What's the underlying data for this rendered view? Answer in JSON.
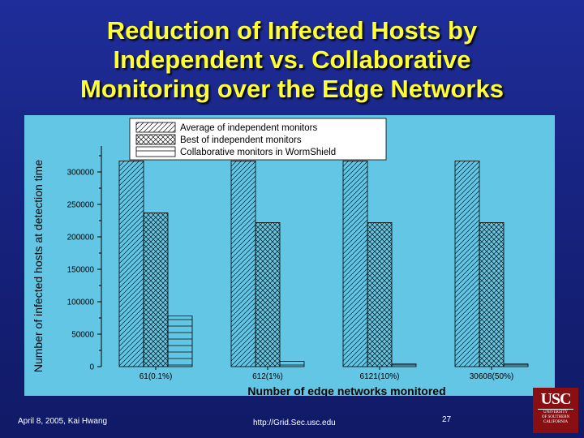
{
  "slide": {
    "title_lines": [
      "Reduction of Infected Hosts by",
      "Independent vs. Collaborative",
      "Monitoring over the Edge Networks"
    ]
  },
  "footer": {
    "date_author": "April 8, 2005,  Kai Hwang",
    "url": "http://Grid.Sec.usc.edu",
    "page": "27"
  },
  "logo": {
    "abbr": "USC",
    "line1": "UNIVERSITY",
    "line2": "OF SOUTHERN",
    "line3": "CALIFORNIA"
  },
  "colors": {
    "chart_background": "#63c6e4",
    "title": "#ffff33",
    "slide_background": "#1a2888"
  },
  "chart_data": {
    "type": "bar",
    "categories": [
      "61(0.1%)",
      "612(1%)",
      "6121(10%)",
      "30608(50%)"
    ],
    "series": [
      {
        "name": "Average of independent monitors",
        "pattern": "diagonal-hatch",
        "values": [
          317000,
          317000,
          317000,
          317000
        ]
      },
      {
        "name": "Best of independent monitors",
        "pattern": "cross-hatch",
        "values": [
          237000,
          222000,
          222000,
          222000
        ]
      },
      {
        "name": "Collaborative monitors in WormShield",
        "pattern": "horizontal-lines",
        "values": [
          78000,
          8000,
          4000,
          4000
        ]
      }
    ],
    "xlabel": "Number of edge networks monitored",
    "ylabel": "Number of infected hosts at detection time",
    "yticks": [
      0,
      50000,
      100000,
      150000,
      200000,
      250000,
      300000
    ],
    "ylim": [
      0,
      340000
    ],
    "legend_position": "top",
    "grid": false
  }
}
